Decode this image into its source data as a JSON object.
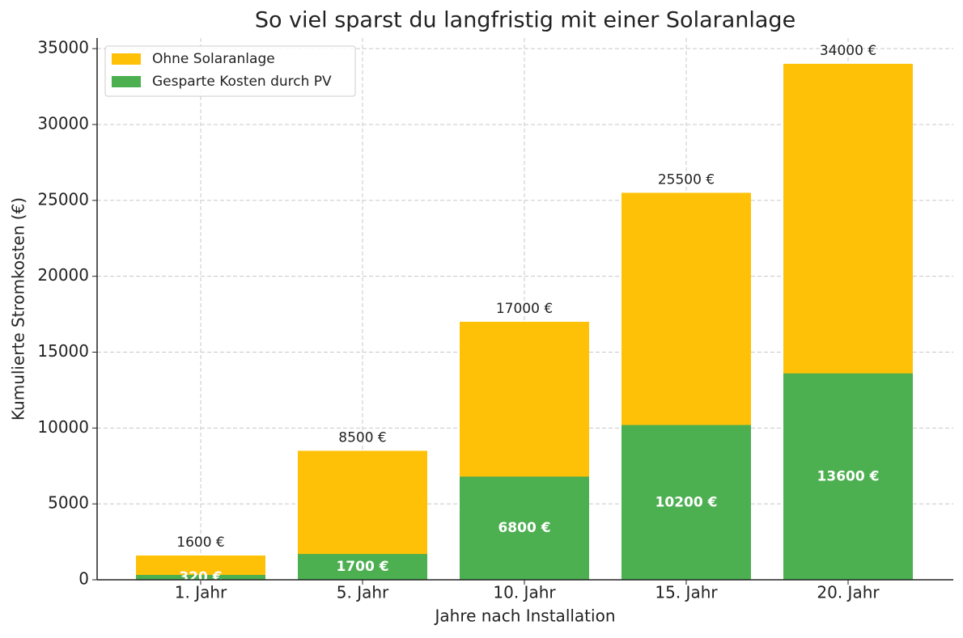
{
  "chart_data": {
    "type": "bar",
    "title": "So viel sparst du langfristig mit einer Solaranlage",
    "x_label": "Jahre nach Installation",
    "y_label": "Kumulierte Stromkosten (€)",
    "categories": [
      "1. Jahr",
      "5. Jahr",
      "10. Jahr",
      "15. Jahr",
      "20. Jahr"
    ],
    "series": [
      {
        "name": "Ohne Solaranlage",
        "color": "#ffc107",
        "values": [
          1600,
          8500,
          17000,
          25500,
          34000
        ],
        "value_labels": [
          "1600 €",
          "8500 €",
          "17000 €",
          "25500 €",
          "34000 €"
        ]
      },
      {
        "name": "Gesparte Kosten durch PV",
        "color": "#4caf50",
        "values": [
          320,
          1700,
          6800,
          10200,
          13600
        ],
        "value_labels": [
          "320 €",
          "1700 €",
          "6800 €",
          "10200 €",
          "13600 €"
        ]
      }
    ],
    "ylim": [
      0,
      35700
    ],
    "yticks": [
      0,
      5000,
      10000,
      15000,
      20000,
      25000,
      30000,
      35000
    ],
    "grid": true,
    "legend": "upper left"
  }
}
